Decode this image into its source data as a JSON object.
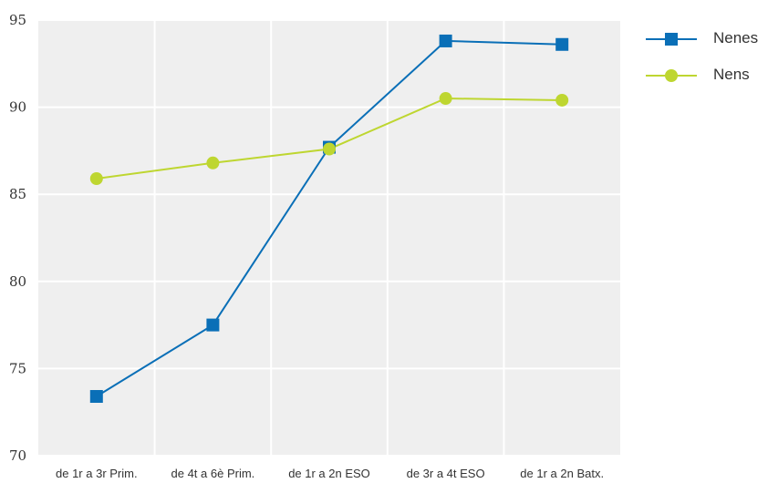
{
  "chart_data": {
    "type": "line",
    "title": "",
    "xlabel": "",
    "ylabel": "",
    "categories": [
      "de 1r a 3r Prim.",
      "de 4t a 6è Prim.",
      "de 1r a 2n ESO",
      "de 3r a 4t ESO",
      "de 1r a 2n Batx."
    ],
    "ylim": [
      70,
      95
    ],
    "yticks": [
      70,
      75,
      80,
      85,
      90,
      95
    ],
    "grid": true,
    "legend_position": "right",
    "plot_background": "#efefef",
    "series": [
      {
        "name": "Nenes",
        "color": "#0a6fb7",
        "marker": "square",
        "values": [
          73.4,
          77.5,
          87.7,
          93.8,
          93.6
        ]
      },
      {
        "name": "Nens",
        "color": "#bed630",
        "marker": "circle",
        "values": [
          85.9,
          86.8,
          87.6,
          90.5,
          90.4
        ]
      }
    ]
  }
}
